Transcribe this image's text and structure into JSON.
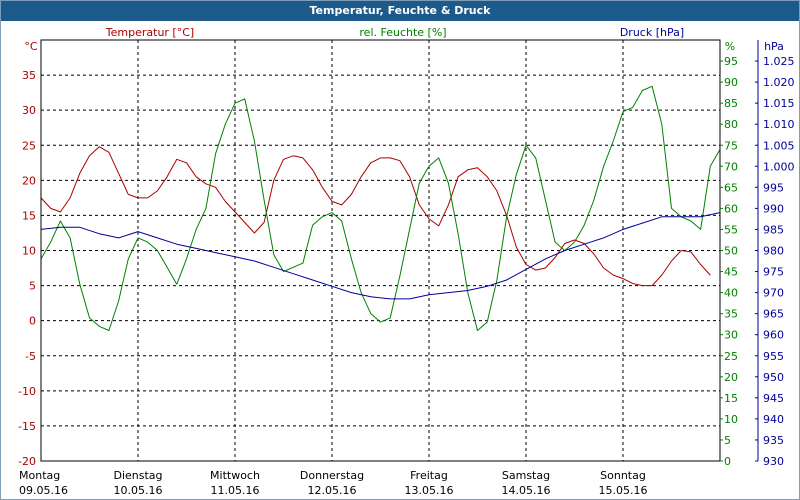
{
  "window": {
    "title": "Temperatur, Feuchte & Druck"
  },
  "chart_data": {
    "type": "line",
    "title": "Temperatur, Feuchte & Druck",
    "grid": true,
    "x_ticks": [
      {
        "day": "Montag",
        "date": "09.05.16",
        "pos": 0
      },
      {
        "day": "Dienstag",
        "date": "10.05.16",
        "pos": 1
      },
      {
        "day": "Mittwoch",
        "date": "11.05.16",
        "pos": 2
      },
      {
        "day": "Donnerstag",
        "date": "12.05.16",
        "pos": 3
      },
      {
        "day": "Freitag",
        "date": "13.05.16",
        "pos": 4
      },
      {
        "day": "Samstag",
        "date": "14.05.16",
        "pos": 5
      },
      {
        "day": "Sonntag",
        "date": "15.05.16",
        "pos": 6
      }
    ],
    "xlim": [
      0,
      7
    ],
    "axes": {
      "temp": {
        "label": "Temperatur [°C]",
        "unit": "°C",
        "color": "#aa0000",
        "ylim": [
          -20,
          40
        ],
        "ticks": [
          35,
          30,
          25,
          20,
          15,
          10,
          5,
          0,
          -5,
          -10,
          -15,
          -20
        ]
      },
      "hum": {
        "label": "rel. Feuchte [%]",
        "unit": "%",
        "color": "#008000",
        "ylim": [
          0,
          100
        ],
        "ticks": [
          95,
          90,
          85,
          80,
          75,
          70,
          65,
          60,
          55,
          50,
          45,
          40,
          35,
          30,
          25,
          20,
          15,
          10,
          5,
          0
        ]
      },
      "press": {
        "label": "Druck [hPa]",
        "unit": "hPa",
        "color": "#000099",
        "ylim": [
          930,
          1030
        ],
        "ticks": [
          "1.025",
          "1.020",
          "1.015",
          "1.010",
          "1.005",
          "1.000",
          "995",
          "990",
          "985",
          "980",
          "975",
          "970",
          "965",
          "960",
          "955",
          "950",
          "945",
          "940",
          "935",
          "930"
        ]
      }
    },
    "series": [
      {
        "name": "Temperatur [°C]",
        "axis": "temp",
        "color": "#aa0000",
        "x": [
          0,
          0.1,
          0.2,
          0.3,
          0.4,
          0.5,
          0.6,
          0.7,
          0.8,
          0.9,
          1.0,
          1.1,
          1.2,
          1.3,
          1.4,
          1.5,
          1.6,
          1.7,
          1.8,
          1.9,
          2.0,
          2.1,
          2.2,
          2.3,
          2.4,
          2.5,
          2.6,
          2.7,
          2.8,
          2.9,
          3.0,
          3.1,
          3.2,
          3.3,
          3.4,
          3.5,
          3.6,
          3.7,
          3.8,
          3.9,
          4.0,
          4.1,
          4.2,
          4.3,
          4.4,
          4.5,
          4.6,
          4.7,
          4.8,
          4.9,
          5.0,
          5.1,
          5.2,
          5.3,
          5.4,
          5.5,
          5.6,
          5.7,
          5.8,
          5.9,
          6.0,
          6.1,
          6.2,
          6.3,
          6.4,
          6.5,
          6.6,
          6.7,
          6.8,
          6.9
        ],
        "values": [
          17.5,
          16,
          15.5,
          17.5,
          21,
          23.5,
          24.8,
          24,
          21,
          18,
          17.5,
          17.5,
          18.5,
          20.5,
          23,
          22.5,
          20.5,
          19.5,
          19,
          17,
          15.5,
          14,
          12.5,
          14,
          20,
          23,
          23.5,
          23.2,
          21.5,
          19,
          17,
          16.5,
          18,
          20.5,
          22.5,
          23.2,
          23.2,
          22.8,
          20.5,
          16.5,
          14.5,
          13.5,
          16.5,
          20.5,
          21.5,
          21.8,
          20.5,
          18.5,
          15,
          10.5,
          8,
          7.2,
          7.5,
          9,
          11,
          11.5,
          11,
          9.5,
          7.5,
          6.5,
          6,
          5.3,
          5,
          5,
          6.5,
          8.5,
          10,
          9.8,
          8,
          6.5
        ]
      },
      {
        "name": "rel. Feuchte [%]",
        "axis": "hum",
        "color": "#008000",
        "x": [
          0,
          0.1,
          0.2,
          0.3,
          0.4,
          0.5,
          0.6,
          0.7,
          0.8,
          0.9,
          1.0,
          1.1,
          1.2,
          1.3,
          1.4,
          1.5,
          1.6,
          1.7,
          1.8,
          1.9,
          2.0,
          2.1,
          2.2,
          2.3,
          2.4,
          2.5,
          2.6,
          2.7,
          2.8,
          2.9,
          3.0,
          3.1,
          3.2,
          3.3,
          3.4,
          3.5,
          3.6,
          3.7,
          3.8,
          3.9,
          4.0,
          4.1,
          4.2,
          4.3,
          4.4,
          4.5,
          4.6,
          4.7,
          4.8,
          4.9,
          5.0,
          5.1,
          5.2,
          5.3,
          5.4,
          5.5,
          5.6,
          5.7,
          5.8,
          5.9,
          6.0,
          6.1,
          6.2,
          6.3,
          6.4,
          6.5,
          6.6,
          6.7,
          6.8,
          6.9,
          7.0
        ],
        "values": [
          48,
          52,
          57,
          53,
          42,
          34,
          32,
          31,
          38,
          48,
          53,
          52,
          50,
          46,
          42,
          48,
          55,
          60,
          73,
          80,
          85,
          86,
          76,
          62,
          49,
          45,
          46,
          47,
          56,
          58,
          59,
          57,
          48,
          40,
          35,
          33,
          34,
          44,
          55,
          66,
          70,
          72,
          66,
          54,
          40,
          31,
          33,
          43,
          58,
          68,
          75,
          72,
          62,
          52,
          50,
          52,
          56,
          62,
          70,
          76,
          83,
          84,
          88,
          89,
          80,
          60,
          58,
          57,
          55,
          70,
          74
        ]
      },
      {
        "name": "Druck [hPa]",
        "axis": "press",
        "color": "#000099",
        "x": [
          0,
          0.2,
          0.4,
          0.6,
          0.8,
          1.0,
          1.2,
          1.4,
          1.6,
          1.8,
          2.0,
          2.2,
          2.4,
          2.6,
          2.8,
          3.0,
          3.2,
          3.4,
          3.6,
          3.8,
          4.0,
          4.2,
          4.4,
          4.6,
          4.8,
          5.0,
          5.2,
          5.4,
          5.6,
          5.8,
          6.0,
          6.2,
          6.4,
          6.6,
          6.8,
          7.0
        ],
        "values": [
          985,
          985.5,
          985.5,
          984,
          983,
          984.5,
          983,
          981.5,
          980.5,
          979.5,
          978.5,
          977.5,
          976,
          974.5,
          973,
          971.5,
          970,
          969,
          968.5,
          968.5,
          969.5,
          970,
          970.5,
          971.5,
          973,
          975.5,
          978,
          980,
          981.5,
          983,
          985,
          986.5,
          988,
          988,
          988,
          989
        ]
      }
    ]
  }
}
